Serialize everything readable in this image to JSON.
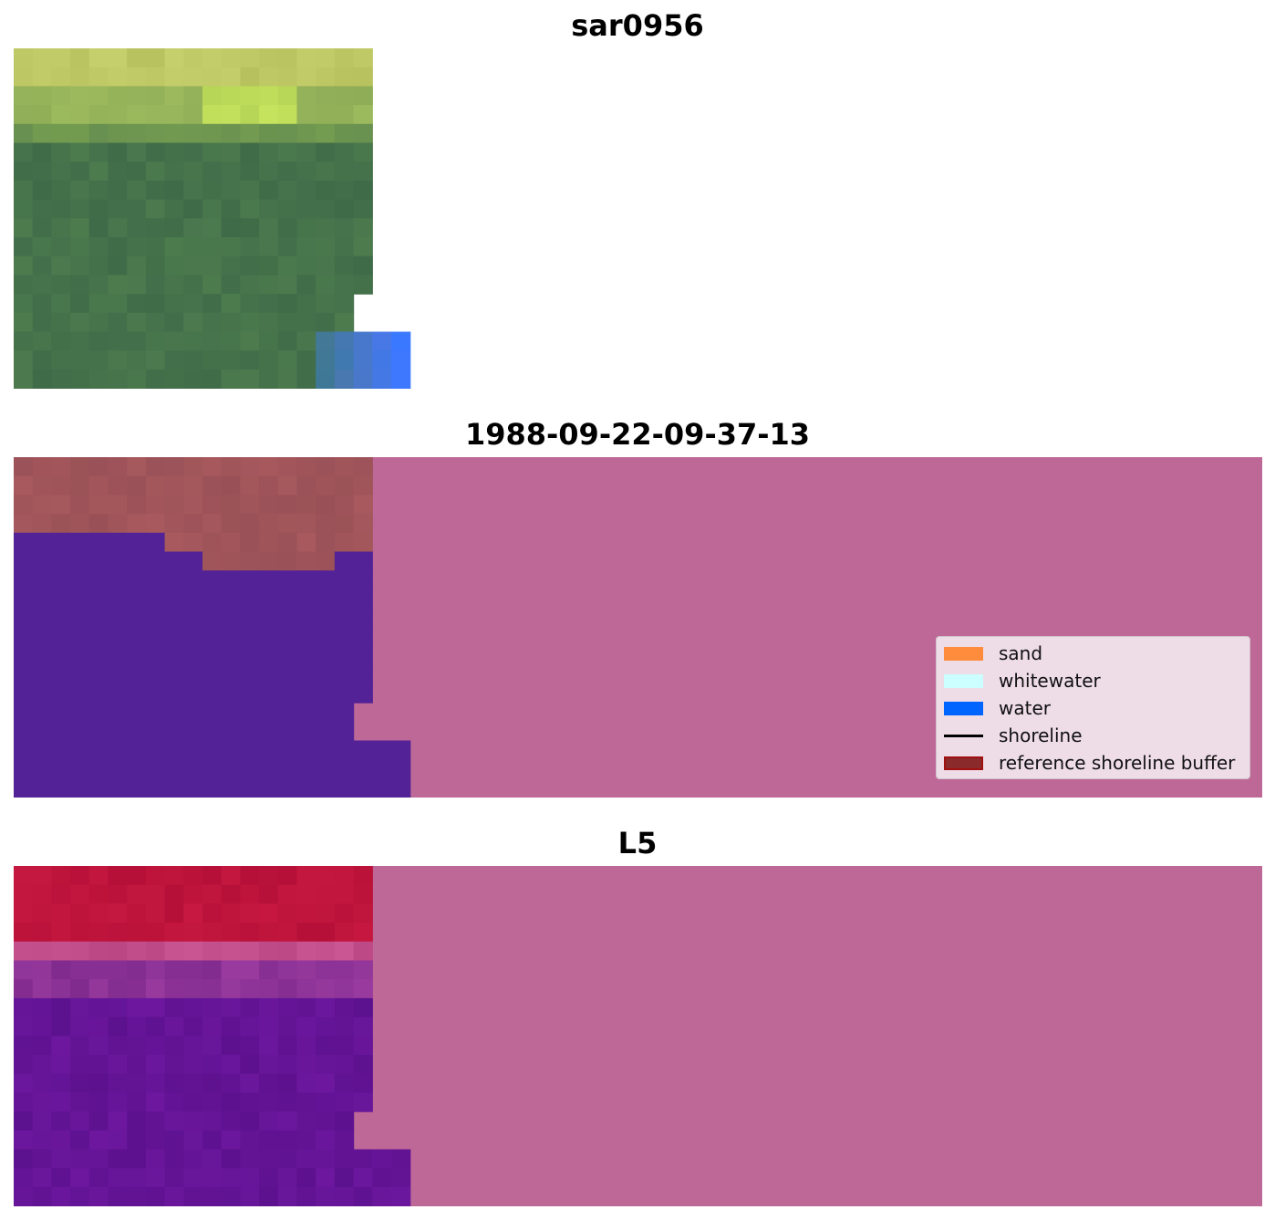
{
  "panels": [
    {
      "title": "sar0956",
      "type": "rgb-image"
    },
    {
      "title": "1988-09-22-09-37-13",
      "type": "classification-overlay"
    },
    {
      "title": "L5",
      "type": "mndwi-image"
    }
  ],
  "legend": {
    "items": [
      {
        "label": "sand",
        "color": "#ff8c3c",
        "kind": "patch"
      },
      {
        "label": "whitewater",
        "color": "#ccffff",
        "kind": "patch"
      },
      {
        "label": "water",
        "color": "#0064ff",
        "kind": "patch"
      },
      {
        "label": "shoreline",
        "color": "#000000",
        "kind": "line"
      },
      {
        "label": "reference shoreline buffer",
        "color": "#8b1a1a",
        "kind": "patch"
      }
    ]
  },
  "colors": {
    "background_mask": "#bd6896",
    "classification_water": "#522296",
    "classification_sand": "#a3545a"
  }
}
